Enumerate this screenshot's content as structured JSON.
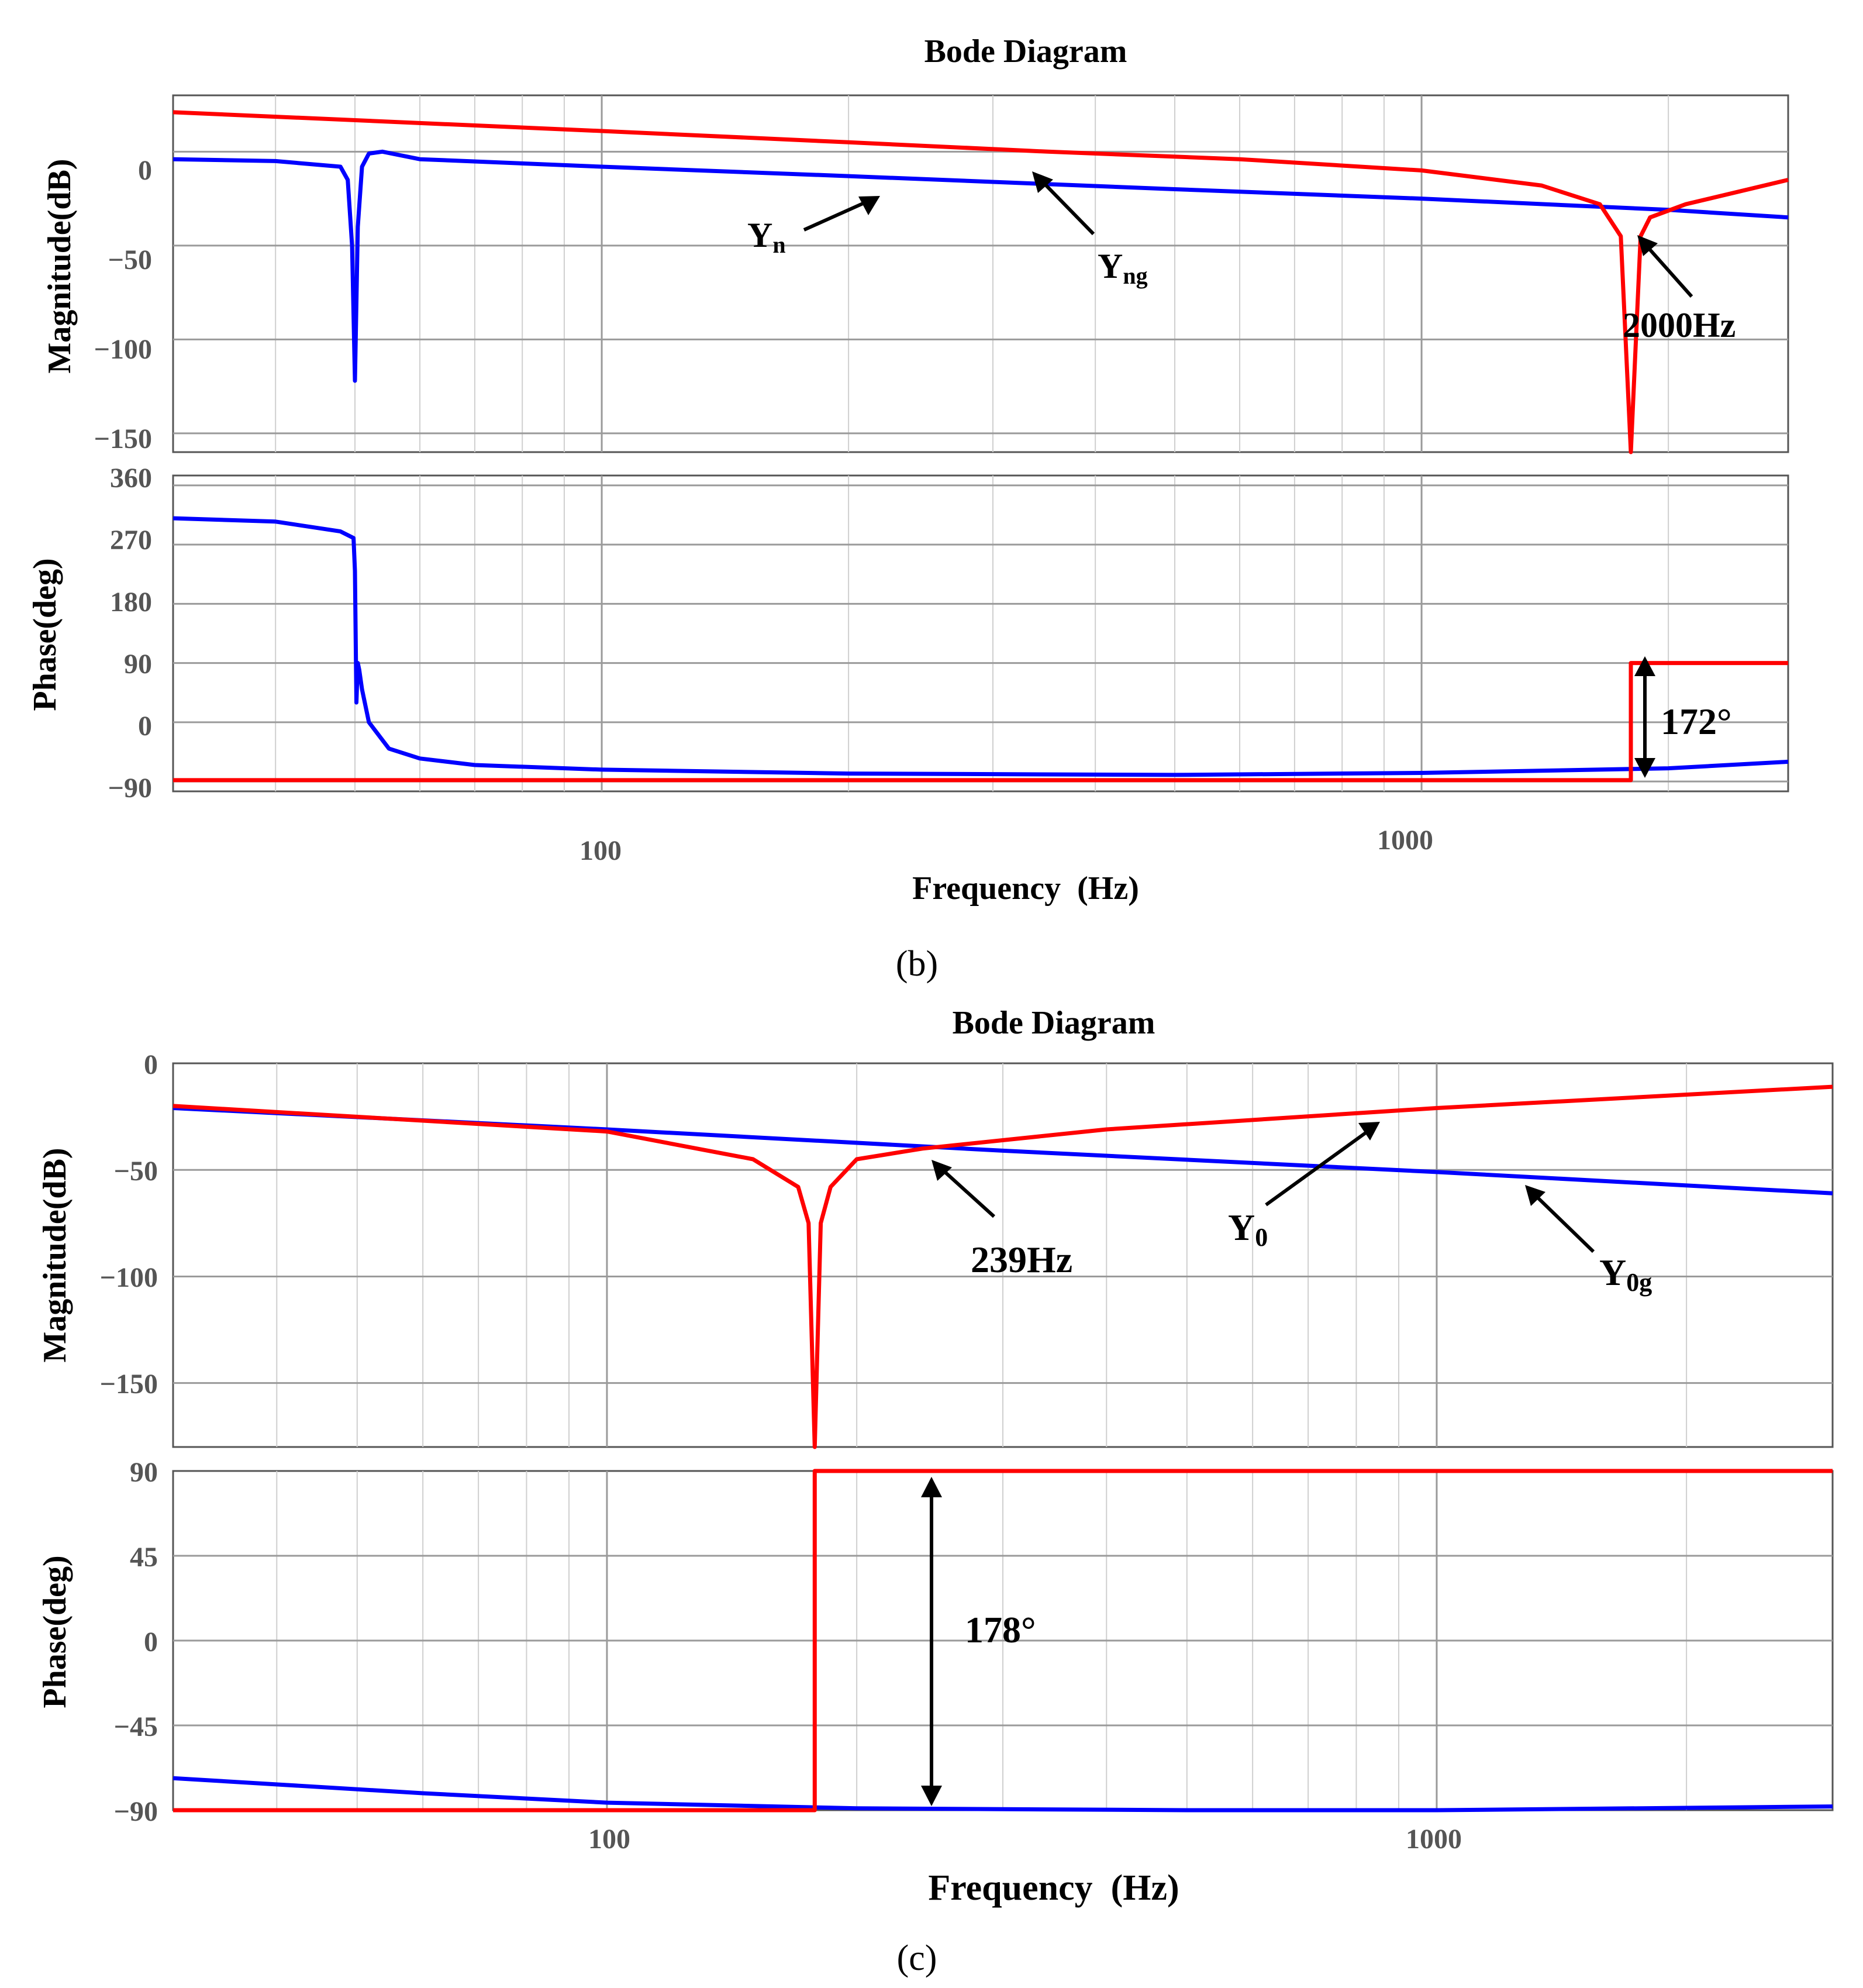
{
  "figures": [
    {
      "title": "Bode Diagram",
      "xlabel": "Frequency  (Hz)",
      "panel_label": "(b)",
      "x_ticks": [
        "100",
        "1000"
      ],
      "magnitude": {
        "ylabel": "Magnitude(dB)",
        "y_ticks": [
          "0",
          "−50",
          "−100",
          "−150"
        ]
      },
      "phase": {
        "ylabel": "Phase(deg)",
        "y_ticks": [
          "360",
          "270",
          "180",
          "90",
          "0",
          "−90"
        ]
      },
      "annotations": {
        "yn": {
          "main": "Y",
          "sub": "n"
        },
        "yng": {
          "main": "Y",
          "sub": "ng"
        },
        "freq": "2000Hz",
        "angle": "172°"
      }
    },
    {
      "title": "Bode Diagram",
      "xlabel": "Frequency  (Hz)",
      "panel_label": "(c)",
      "x_ticks": [
        "100",
        "1000"
      ],
      "magnitude": {
        "ylabel": "Magnitude(dB)",
        "y_ticks": [
          "0",
          "−50",
          "−100",
          "−150"
        ]
      },
      "phase": {
        "ylabel": "Phase(deg)",
        "y_ticks": [
          "90",
          "45",
          "0",
          "−45",
          "−90"
        ]
      },
      "annotations": {
        "freq": "239Hz",
        "y0": {
          "main": "Y",
          "sub": "0"
        },
        "y0g": {
          "main": "Y",
          "sub": "0g"
        },
        "angle": "178°"
      }
    }
  ],
  "chart_data": [
    {
      "type": "line",
      "panel": "(b) magnitude",
      "title": "Bode Diagram",
      "xlabel": "Frequency  (Hz)",
      "ylabel": "Magnitude(dB)",
      "xscale": "log",
      "xlim": [
        30,
        2800
      ],
      "ylim": [
        -160,
        40
      ],
      "series": [
        {
          "name": "Yn",
          "color": "#0000ff",
          "x": [
            30,
            40,
            48,
            49,
            49.6,
            50,
            50.4,
            51,
            52,
            54,
            60,
            100,
            200,
            500,
            1000,
            2000,
            2800
          ],
          "y": [
            -4,
            -5,
            -8,
            -15,
            -50,
            -122,
            -40,
            -8,
            -1,
            0,
            -4,
            -8,
            -13,
            -20,
            -25,
            -31,
            -35
          ]
        },
        {
          "name": "Yng",
          "color": "#ff0000",
          "x": [
            30,
            100,
            200,
            350,
            600,
            1000,
            1400,
            1650,
            1750,
            1800,
            1850,
            1900,
            2100,
            2800
          ],
          "y": [
            21,
            11,
            5,
            0,
            -4,
            -10,
            -18,
            -28,
            -45,
            -160,
            -45,
            -35,
            -28,
            -15
          ]
        }
      ]
    },
    {
      "type": "line",
      "panel": "(b) phase",
      "xlabel": "Frequency  (Hz)",
      "ylabel": "Phase(deg)",
      "xscale": "log",
      "xlim": [
        30,
        2800
      ],
      "ylim": [
        -90,
        360
      ],
      "series": [
        {
          "name": "Yn",
          "color": "#0000ff",
          "x": [
            30,
            40,
            48,
            49.8,
            50,
            50.2,
            50.4,
            50.6,
            51,
            52,
            55,
            60,
            70,
            100,
            200,
            500,
            1000,
            2000,
            2800
          ],
          "y": [
            310,
            305,
            290,
            280,
            230,
            30,
            90,
            80,
            50,
            0,
            -40,
            -55,
            -65,
            -72,
            -78,
            -80,
            -77,
            -70,
            -60
          ]
        },
        {
          "name": "Yng",
          "color": "#ff0000",
          "x": [
            30,
            1800,
            1800,
            2800
          ],
          "y": [
            -88,
            -88,
            90,
            90
          ]
        }
      ]
    },
    {
      "type": "line",
      "panel": "(c) magnitude",
      "title": "Bode Diagram",
      "xlabel": "Frequency  (Hz)",
      "ylabel": "Magnitude(dB)",
      "xscale": "log",
      "xlim": [
        30,
        3000
      ],
      "ylim": [
        -180,
        0
      ],
      "series": [
        {
          "name": "Y0",
          "color": "#0000ff",
          "x": [
            30,
            100,
            300,
            1000,
            3000
          ],
          "y": [
            -21,
            -31,
            -41,
            -51,
            -61
          ]
        },
        {
          "name": "Y0g",
          "color": "#ff0000",
          "x": [
            30,
            100,
            150,
            170,
            175,
            178,
            181,
            186,
            200,
            240,
            400,
            1000,
            3000
          ],
          "y": [
            -20,
            -32,
            -45,
            -58,
            -75,
            -180,
            -75,
            -58,
            -45,
            -40,
            -31,
            -21,
            -11
          ]
        }
      ]
    },
    {
      "type": "line",
      "panel": "(c) phase",
      "xlabel": "Frequency  (Hz)",
      "ylabel": "Phase(deg)",
      "xscale": "log",
      "xlim": [
        30,
        3000
      ],
      "ylim": [
        -90,
        90
      ],
      "series": [
        {
          "name": "Y0",
          "color": "#0000ff",
          "x": [
            30,
            60,
            100,
            200,
            500,
            1000,
            3000
          ],
          "y": [
            -73,
            -81,
            -86,
            -89,
            -90,
            -90,
            -88
          ]
        },
        {
          "name": "Y0g",
          "color": "#ff0000",
          "x": [
            30,
            178,
            178,
            3000
          ],
          "y": [
            -90,
            -90,
            90,
            90
          ]
        }
      ]
    }
  ]
}
